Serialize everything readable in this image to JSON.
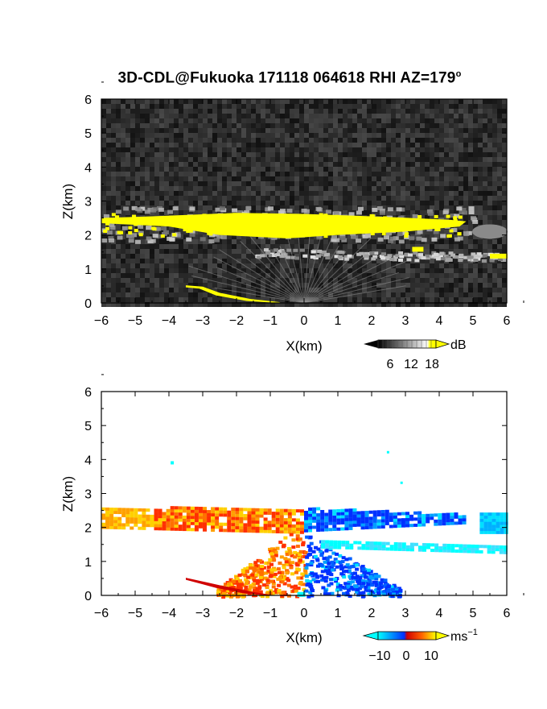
{
  "title": {
    "main": "3D-CDL@Fukuoka 171118 064618 RHI AZ=179",
    "degree_mark": "o"
  },
  "chart_data": [
    {
      "type": "heatmap",
      "quantity": "reflectivity / SNR",
      "xlabel": "X(km)",
      "ylabel": "Z(km)",
      "xlim": [
        -6,
        6
      ],
      "ylim": [
        0,
        6
      ],
      "xticks": [
        "-6",
        "-5",
        "-4",
        "-3",
        "-2",
        "-1",
        "0",
        "1",
        "2",
        "3",
        "4",
        "5",
        "6"
      ],
      "yticks": [
        "0",
        "1",
        "2",
        "3",
        "4",
        "5",
        "6"
      ],
      "background": "grayscale noise",
      "colorbar": {
        "unit": "dB",
        "ticks": [
          "6",
          "12",
          "18"
        ],
        "colors": [
          "#000000",
          "#ffffff",
          "#ffff00"
        ]
      },
      "features": [
        {
          "name": "cloud-layer",
          "x": [
            -6,
            4.8
          ],
          "z": [
            2.0,
            2.7
          ],
          "value_db": 18
        },
        {
          "name": "lower-layer",
          "x": [
            -1,
            6
          ],
          "z": [
            1.3,
            1.6
          ],
          "value_db": 10
        },
        {
          "name": "ground-echo",
          "x": [
            -3.5,
            -1
          ],
          "z": [
            0,
            0.5
          ],
          "value_db": 18
        }
      ]
    },
    {
      "type": "heatmap",
      "quantity": "Doppler velocity",
      "xlabel": "X(km)",
      "ylabel": "Z(km)",
      "xlim": [
        -6,
        6
      ],
      "ylim": [
        0,
        6
      ],
      "xticks": [
        "-6",
        "-5",
        "-4",
        "-3",
        "-2",
        "-1",
        "0",
        "1",
        "2",
        "3",
        "4",
        "5",
        "6"
      ],
      "yticks": [
        "0",
        "1",
        "2",
        "3",
        "4",
        "5",
        "6"
      ],
      "colorbar": {
        "unit": "ms",
        "unit_exp": "−1",
        "ticks": [
          "−10",
          "0",
          "10"
        ],
        "colors": [
          "#00ffff",
          "#0040ff",
          "#ff0000",
          "#ffff00"
        ]
      },
      "features": [
        {
          "name": "approaching",
          "x": [
            -6,
            0
          ],
          "z": [
            1.9,
            2.7
          ],
          "velocity": 8
        },
        {
          "name": "receding",
          "x": [
            0,
            6
          ],
          "z": [
            1.3,
            2.7
          ],
          "velocity": -8
        }
      ]
    }
  ]
}
